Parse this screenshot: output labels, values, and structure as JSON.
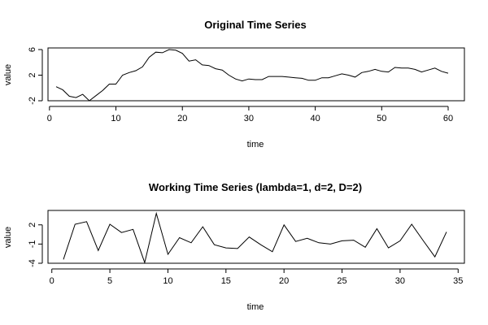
{
  "chart_data": [
    {
      "type": "line",
      "title": "Original Time Series",
      "xlabel": "time",
      "ylabel": "value",
      "xlim": [
        1,
        60
      ],
      "ylim": [
        -2,
        6
      ],
      "xticks": [
        0,
        10,
        20,
        30,
        40,
        50,
        60
      ],
      "yticks": [
        -2,
        2,
        6
      ],
      "x": [
        1,
        2,
        3,
        4,
        5,
        6,
        7,
        8,
        9,
        10,
        11,
        12,
        13,
        14,
        15,
        16,
        17,
        18,
        19,
        20,
        21,
        22,
        23,
        24,
        25,
        26,
        27,
        28,
        29,
        30,
        31,
        32,
        33,
        34,
        35,
        36,
        37,
        38,
        39,
        40,
        41,
        42,
        43,
        44,
        45,
        46,
        47,
        48,
        49,
        50,
        51,
        52,
        53,
        54,
        55,
        56,
        57,
        58,
        59,
        60
      ],
      "values": [
        0.2,
        -0.3,
        -1.3,
        -1.5,
        -1.0,
        -2.0,
        -1.2,
        -0.4,
        0.6,
        0.6,
        2.0,
        2.4,
        2.7,
        3.3,
        4.8,
        5.6,
        5.5,
        6.0,
        5.9,
        5.4,
        4.2,
        4.4,
        3.6,
        3.5,
        3.0,
        2.8,
        2.0,
        1.4,
        1.1,
        1.4,
        1.3,
        1.3,
        1.8,
        1.8,
        1.8,
        1.7,
        1.6,
        1.5,
        1.2,
        1.2,
        1.6,
        1.6,
        1.9,
        2.2,
        2.0,
        1.7,
        2.4,
        2.6,
        2.9,
        2.6,
        2.5,
        3.2,
        3.1,
        3.1,
        2.9,
        2.5,
        2.8,
        3.1,
        2.6,
        2.3
      ]
    },
    {
      "type": "line",
      "title": "Working Time Series (lambda=1, d=2, D=2)",
      "xlabel": "time",
      "ylabel": "value",
      "xlim": [
        1,
        34
      ],
      "ylim": [
        -4,
        4
      ],
      "xticks": [
        0,
        5,
        10,
        15,
        20,
        25,
        30,
        35
      ],
      "yticks": [
        -4,
        -1,
        2
      ],
      "x": [
        1,
        2,
        3,
        4,
        5,
        6,
        7,
        8,
        9,
        10,
        11,
        12,
        13,
        14,
        15,
        16,
        17,
        18,
        19,
        20,
        21,
        22,
        23,
        24,
        25,
        26,
        27,
        28,
        29,
        30,
        31,
        32,
        33,
        34
      ],
      "values": [
        -3.4,
        2.1,
        2.5,
        -2.0,
        2.1,
        0.8,
        1.3,
        -3.9,
        3.8,
        -2.6,
        0.0,
        -0.8,
        1.7,
        -1.1,
        -1.6,
        -1.7,
        0.1,
        -1.1,
        -2.2,
        2.0,
        -0.6,
        -0.1,
        -0.8,
        -1.0,
        -0.5,
        -0.4,
        -1.5,
        1.4,
        -1.6,
        -0.5,
        2.1,
        -0.5,
        -3.0,
        0.9
      ]
    }
  ]
}
